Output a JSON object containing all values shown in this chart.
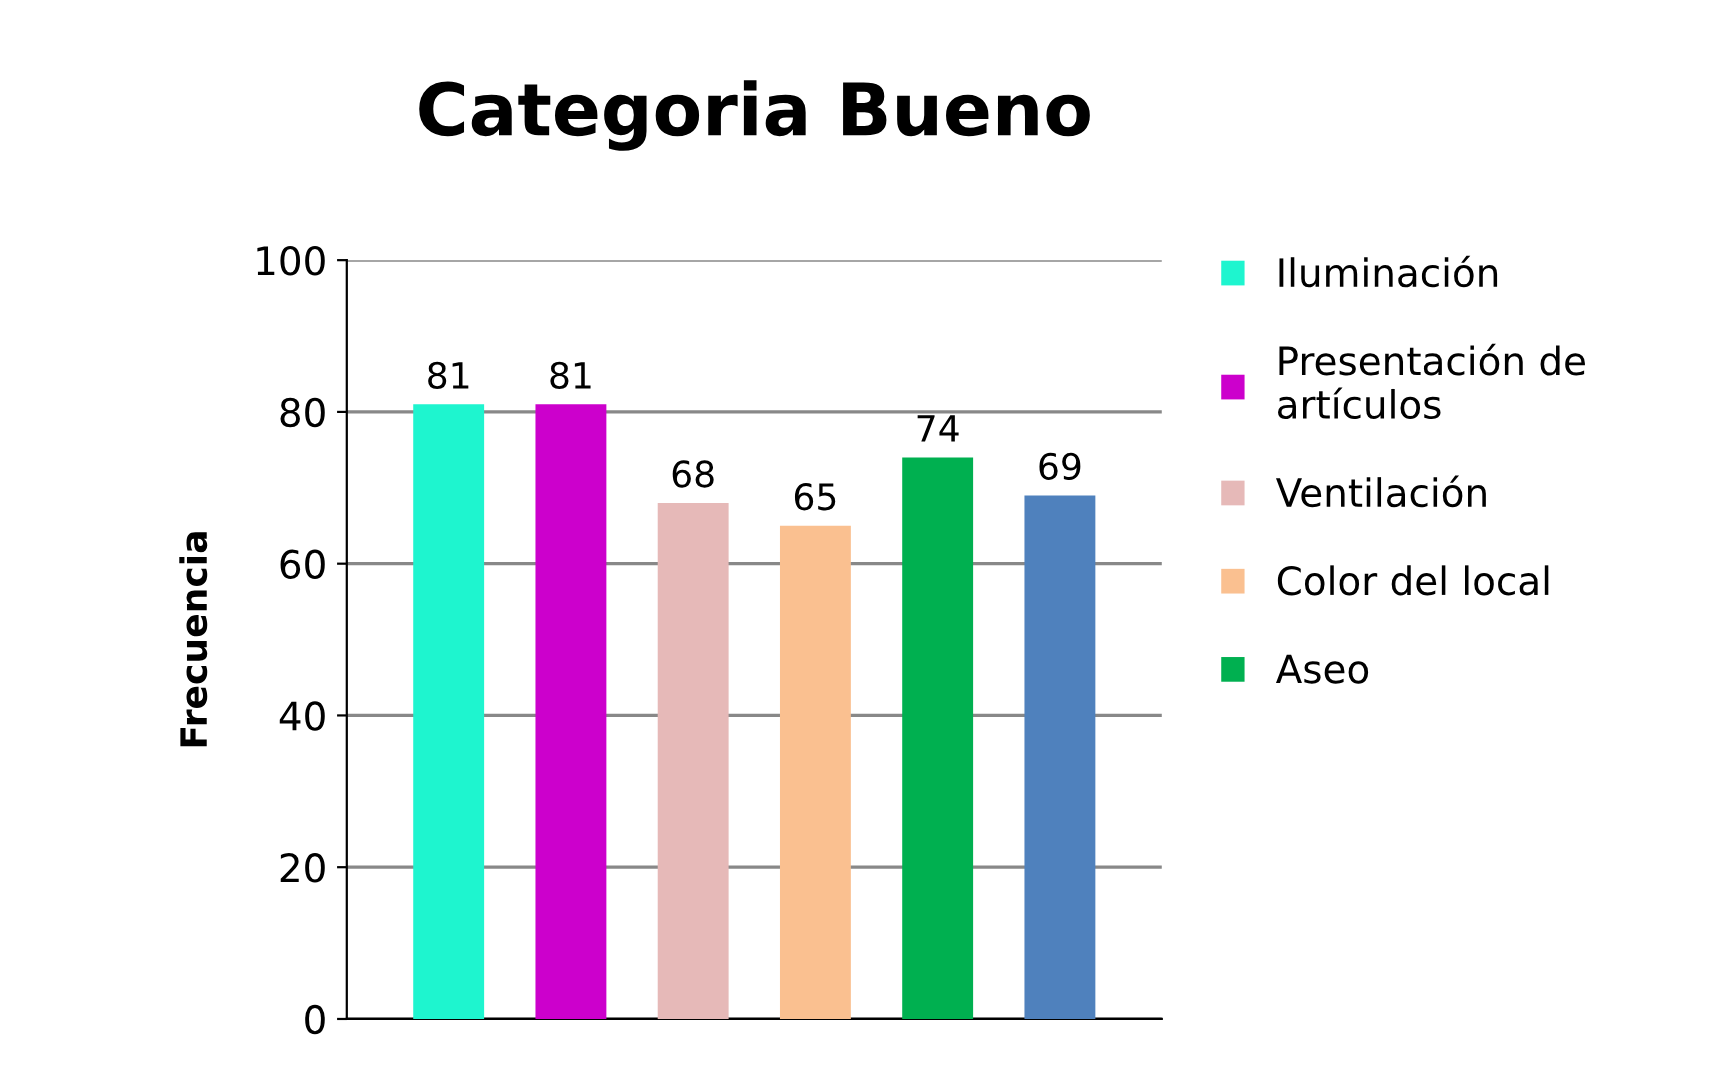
{
  "chart_data": {
    "type": "bar",
    "title": "Categoria Bueno",
    "ylabel": "Frecuencia",
    "categories": [
      null
    ],
    "series": [
      {
        "name": "Iluminación",
        "color": "#1ef5cf",
        "values": [
          81
        ]
      },
      {
        "name": "Presentación de artículos",
        "color": "#cc00cc",
        "values": [
          81
        ]
      },
      {
        "name": "Ventilación",
        "color": "#e6b9b8",
        "values": [
          68
        ]
      },
      {
        "name": "Color del local",
        "color": "#fac090",
        "values": [
          65
        ]
      },
      {
        "name": "Aseo",
        "color": "#00b050",
        "values": [
          74
        ]
      },
      {
        "color": "#4f81bd",
        "values": [
          69
        ]
      }
    ],
    "ylim": [
      0,
      100
    ],
    "yticks": [
      0,
      20,
      40,
      60,
      80,
      100
    ],
    "grid": "y",
    "legend": "right",
    "data_labels": true
  }
}
